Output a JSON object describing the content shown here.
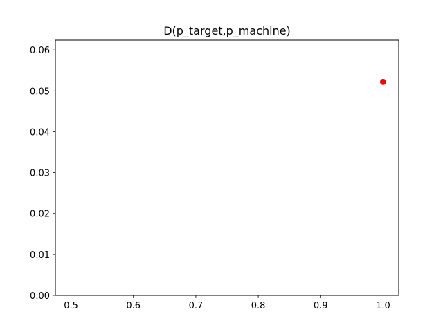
{
  "chart_data": {
    "type": "scatter",
    "title": "D(p_target,p_machine)",
    "xlabel": "",
    "ylabel": "",
    "xlim": [
      0.475,
      1.025
    ],
    "ylim": [
      0.0,
      0.0624
    ],
    "x_ticks": [
      0.5,
      0.6,
      0.7,
      0.8,
      0.9,
      1.0
    ],
    "x_tick_labels": [
      "0.5",
      "0.6",
      "0.7",
      "0.8",
      "0.9",
      "1.0"
    ],
    "y_ticks": [
      0.0,
      0.01,
      0.02,
      0.03,
      0.04,
      0.05,
      0.06
    ],
    "y_tick_labels": [
      "0.00",
      "0.01",
      "0.02",
      "0.03",
      "0.04",
      "0.05",
      "0.06"
    ],
    "grid": false,
    "series": [
      {
        "points": [
          {
            "x": 1.0,
            "y": 0.0522
          }
        ],
        "color": "#ff0000",
        "marker": "circle"
      }
    ]
  }
}
